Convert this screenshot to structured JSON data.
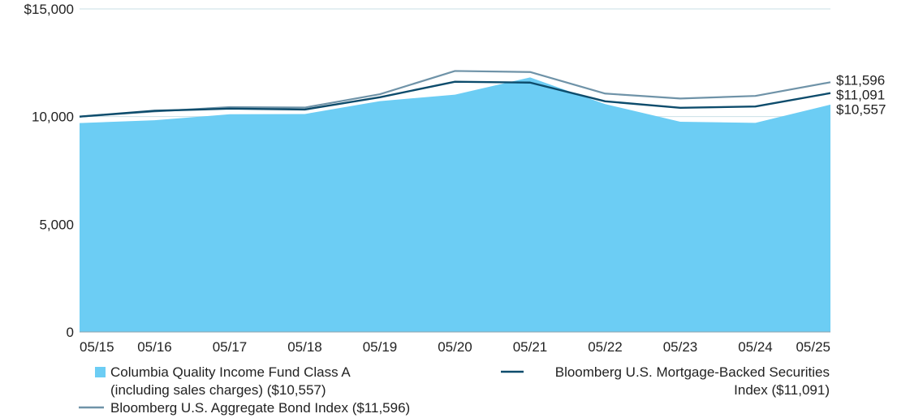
{
  "chart_data": {
    "type": "area",
    "categories": [
      "05/15",
      "05/16",
      "05/17",
      "05/18",
      "05/19",
      "05/20",
      "05/21",
      "05/22",
      "05/23",
      "05/24",
      "05/25"
    ],
    "x": [
      0,
      1,
      2,
      3,
      4,
      5,
      6,
      7,
      8,
      9,
      10
    ],
    "ylim": [
      0,
      15000
    ],
    "yticks": [
      0,
      5000,
      10000,
      15000
    ],
    "ytick_labels": [
      "0",
      "5,000",
      "10,000",
      "$15,000"
    ],
    "grid": true,
    "legend_position": "bottom",
    "series": [
      {
        "name": "Columbia Quality Income Fund Class A (including sales charges) ($10,557)",
        "legend_lines": [
          "Columbia Quality Income Fund Class A",
          "(including sales charges) ($10,557)"
        ],
        "kind": "area",
        "color": "#6ccdf4",
        "x": [
          0,
          1,
          2,
          3,
          4,
          5,
          6,
          7,
          8,
          9,
          10
        ],
        "values": [
          9702,
          9830,
          10110,
          10120,
          10720,
          11020,
          11820,
          10580,
          9760,
          9710,
          10557
        ],
        "end_label": "$10,557"
      },
      {
        "name": "Bloomberg U.S. Mortgage-Backed Securities Index ($11,091)",
        "legend_lines": [
          "Bloomberg U.S. Mortgage-Backed Securities",
          "Index ($11,091)"
        ],
        "kind": "line",
        "color": "#0d4c6c",
        "x": [
          0,
          1,
          2,
          3,
          4,
          5,
          6,
          7,
          8,
          9,
          10
        ],
        "values": [
          10000,
          10270,
          10370,
          10330,
          10900,
          11620,
          11580,
          10710,
          10410,
          10470,
          11091
        ],
        "end_label": "$11,091"
      },
      {
        "name": "Bloomberg U.S. Aggregate Bond Index ($11,596)",
        "legend_lines": [
          "Bloomberg U.S. Aggregate Bond Index ($11,596)"
        ],
        "kind": "line",
        "color": "#6f93a8",
        "x": [
          0,
          1,
          2,
          3,
          4,
          5,
          6,
          7,
          8,
          9,
          10
        ],
        "values": [
          10000,
          10240,
          10440,
          10420,
          11040,
          12120,
          12070,
          11070,
          10840,
          10960,
          11596
        ],
        "end_label": "$11,596"
      }
    ]
  }
}
